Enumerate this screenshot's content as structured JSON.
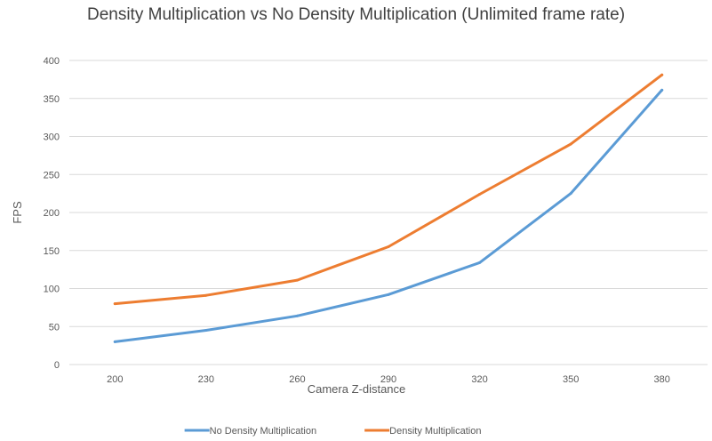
{
  "chart_data": {
    "type": "line",
    "title": "Density Multiplication vs No Density Multiplication (Unlimited frame rate)",
    "xlabel": "Camera Z-distance",
    "ylabel": "FPS",
    "categories": [
      "200",
      "230",
      "260",
      "290",
      "320",
      "350",
      "380"
    ],
    "ylim": [
      0,
      400
    ],
    "yticks": [
      0,
      50,
      100,
      150,
      200,
      250,
      300,
      350,
      400
    ],
    "grid": true,
    "legend_position": "bottom",
    "series": [
      {
        "name": "No Density Multiplication",
        "color": "#5b9bd5",
        "values": [
          30,
          45,
          64,
          92,
          134,
          225,
          361
        ]
      },
      {
        "name": "Density Multiplication",
        "color": "#ed7d31",
        "values": [
          80,
          91,
          111,
          155,
          224,
          290,
          381
        ]
      }
    ]
  }
}
